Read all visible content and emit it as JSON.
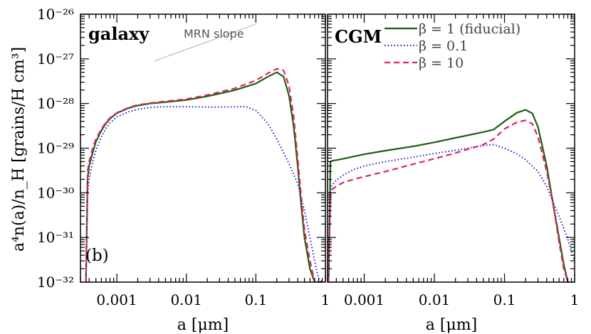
{
  "chart_data": [
    {
      "type": "line",
      "panel_title": "galaxy",
      "annotation": "MRN slope",
      "panel_label": "(b)",
      "xlabel": "a [μm]",
      "ylabel": "a⁴n(a)/n_H [grains/H cm³]",
      "x_scale": "log",
      "y_scale": "log",
      "xlim": [
        0.0003,
        1
      ],
      "ylim": [
        1e-32,
        1e-26
      ],
      "x_ticks": [
        "0.001",
        "0.01",
        "0.1",
        "1"
      ],
      "y_ticks": [
        "10⁻³²",
        "10⁻³¹",
        "10⁻³⁰",
        "10⁻²⁹",
        "10⁻²⁸",
        "10⁻²⁷",
        "10⁻²⁶"
      ],
      "mrn_slope": {
        "x": [
          0.0035,
          0.1
        ],
        "y": [
          9e-28,
          6e-27
        ]
      },
      "series": [
        {
          "name": "β = 1 (fiducial)",
          "color": "#1a5e12",
          "dash": "solid",
          "x": [
            0.00036,
            0.00038,
            0.0004,
            0.00045,
            0.0005,
            0.0006,
            0.0007,
            0.0008,
            0.001,
            0.0015,
            0.002,
            0.003,
            0.005,
            0.01,
            0.02,
            0.05,
            0.1,
            0.15,
            0.2,
            0.25,
            0.3,
            0.35,
            0.4,
            0.45,
            0.5,
            0.6,
            0.7,
            0.8,
            0.9
          ],
          "y": [
            1e-32,
            2e-30,
            4e-30,
            8e-30,
            1.4e-29,
            2.5e-29,
            3.6e-29,
            4.6e-29,
            6.1e-29,
            8e-29,
            9e-29,
            1e-28,
            1.08e-28,
            1.2e-28,
            1.45e-28,
            2e-28,
            2.8e-28,
            4e-28,
            5e-28,
            4e-28,
            1.5e-28,
            3e-29,
            4e-30,
            5e-31,
            1e-31,
            2e-32,
            1e-32,
            1e-32,
            1e-32
          ]
        },
        {
          "name": "β = 0.1",
          "color": "#1b1bd6",
          "dash": "dotted",
          "x": [
            0.00036,
            0.00038,
            0.0004,
            0.00045,
            0.0005,
            0.0006,
            0.0007,
            0.0008,
            0.001,
            0.0015,
            0.002,
            0.003,
            0.005,
            0.01,
            0.02,
            0.05,
            0.07,
            0.1,
            0.15,
            0.2,
            0.3,
            0.4,
            0.5,
            0.6,
            0.7,
            0.8,
            0.9
          ],
          "y": [
            1e-32,
            1e-30,
            2e-30,
            5e-30,
            9e-30,
            1.8e-29,
            2.8e-29,
            3.7e-29,
            5e-29,
            6.6e-29,
            7.4e-29,
            8.2e-29,
            8.5e-29,
            8.5e-29,
            8.3e-29,
            8.4e-29,
            8.6e-29,
            7e-29,
            3.5e-29,
            1.6e-29,
            4.5e-30,
            1.6e-30,
            4e-31,
            1e-31,
            3e-32,
            1.2e-32,
            1e-32
          ]
        },
        {
          "name": "β = 10",
          "color": "#e0245e",
          "dash": "dashed",
          "x": [
            0.00036,
            0.00038,
            0.0004,
            0.00045,
            0.0005,
            0.0006,
            0.0007,
            0.0008,
            0.001,
            0.0015,
            0.002,
            0.003,
            0.005,
            0.01,
            0.02,
            0.05,
            0.1,
            0.15,
            0.2,
            0.25,
            0.3,
            0.35,
            0.4,
            0.45,
            0.5,
            0.6,
            0.7,
            0.8,
            0.9
          ],
          "y": [
            1e-32,
            3e-30,
            5e-30,
            1e-29,
            1.6e-29,
            2.7e-29,
            3.8e-29,
            4.8e-29,
            6.2e-29,
            8.2e-29,
            9.3e-29,
            1.02e-28,
            1.12e-28,
            1.26e-28,
            1.55e-28,
            2.2e-28,
            3.3e-28,
            4.8e-28,
            6e-28,
            5.5e-28,
            2.5e-28,
            5e-29,
            6e-30,
            8e-31,
            1.5e-31,
            3e-32,
            1e-32,
            1e-32,
            1e-32
          ]
        }
      ]
    },
    {
      "type": "line",
      "panel_title": "CGM",
      "xlabel": "a [μm]",
      "x_scale": "log",
      "y_scale": "log",
      "xlim": [
        0.0003,
        1
      ],
      "ylim": [
        1e-32,
        1e-26
      ],
      "x_ticks": [
        "0.001",
        "0.01",
        "0.1",
        "1"
      ],
      "legend_position": "top-right",
      "series": [
        {
          "name": "β = 1 (fiducial)",
          "color": "#1a5e12",
          "dash": "solid",
          "x": [
            0.00031,
            0.00033,
            0.00035,
            0.0004,
            0.0005,
            0.0007,
            0.001,
            0.002,
            0.005,
            0.01,
            0.02,
            0.05,
            0.07,
            0.1,
            0.15,
            0.2,
            0.25,
            0.3,
            0.4,
            0.5,
            0.6,
            0.7,
            0.8
          ],
          "y": [
            1e-32,
            5e-30,
            5.2e-30,
            5.4e-30,
            5.8e-30,
            6.5e-30,
            7.3e-30,
            8.8e-30,
            1.1e-29,
            1.35e-29,
            1.7e-29,
            2.3e-29,
            2.6e-29,
            4e-29,
            6.2e-29,
            7.2e-29,
            6e-29,
            3e-29,
            4e-30,
            5e-31,
            1e-31,
            2.5e-32,
            1e-32
          ]
        },
        {
          "name": "β = 0.1",
          "color": "#1b1bd6",
          "dash": "dotted",
          "x": [
            0.00031,
            0.00033,
            0.00035,
            0.0004,
            0.0005,
            0.0007,
            0.001,
            0.002,
            0.005,
            0.01,
            0.02,
            0.05,
            0.07,
            0.1,
            0.15,
            0.2,
            0.3,
            0.4,
            0.5,
            0.6,
            0.7,
            0.8,
            0.9,
            1.0
          ],
          "y": [
            1e-32,
            1.3e-30,
            1.5e-30,
            1.9e-30,
            2.5e-30,
            3.3e-30,
            4e-30,
            5e-30,
            6.3e-30,
            7.6e-30,
            9e-30,
            1.15e-29,
            1.2e-29,
            1e-29,
            7.5e-30,
            5.5e-30,
            3e-30,
            1.4e-30,
            6e-31,
            3e-31,
            1.6e-31,
            9e-32,
            5e-32,
            3e-32
          ]
        },
        {
          "name": "β = 10",
          "color": "#e0245e",
          "dash": "dashed",
          "x": [
            0.00031,
            0.00033,
            0.00035,
            0.0004,
            0.0005,
            0.0007,
            0.001,
            0.002,
            0.005,
            0.01,
            0.02,
            0.05,
            0.07,
            0.1,
            0.15,
            0.2,
            0.25,
            0.3,
            0.4,
            0.5,
            0.6,
            0.7,
            0.8
          ],
          "y": [
            1e-32,
            1.05e-30,
            1.2e-30,
            1.4e-30,
            1.7e-30,
            2e-30,
            2.3e-30,
            3e-30,
            4.4e-30,
            5.8e-30,
            7.8e-30,
            1.2e-29,
            1.6e-29,
            2.7e-29,
            3.8e-29,
            4.2e-29,
            3.5e-29,
            1.8e-29,
            3e-30,
            5e-31,
            8e-32,
            2e-32,
            1e-32
          ]
        }
      ]
    }
  ]
}
